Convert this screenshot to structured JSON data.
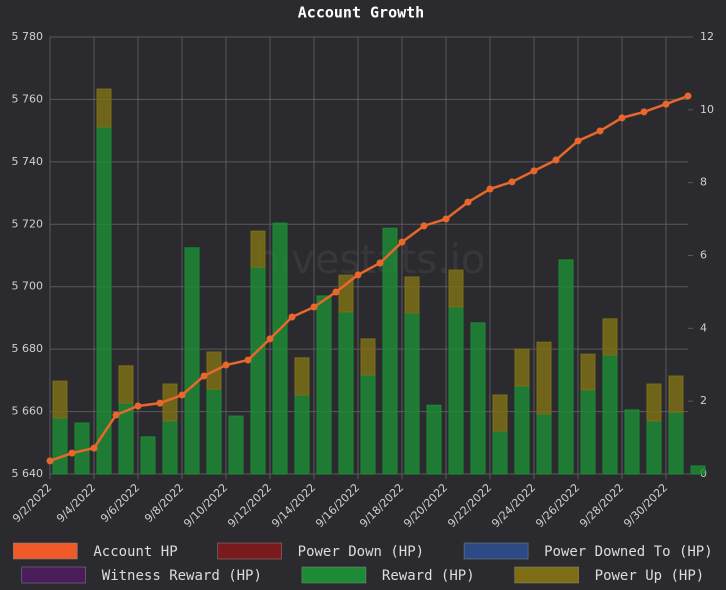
{
  "chart_data": {
    "type": "bar-line",
    "title": "Account Growth",
    "watermark": "hivestats.io",
    "categories": [
      "9/2/2022",
      null,
      "9/4/2022",
      null,
      "9/6/2022",
      null,
      "9/8/2022",
      null,
      "9/10/2022",
      null,
      "9/12/2022",
      null,
      "9/14/2022",
      null,
      "9/16/2022",
      null,
      "9/18/2022",
      null,
      "9/20/2022",
      null,
      "9/22/2022",
      null,
      "9/24/2022",
      null,
      "9/26/2022",
      null,
      "9/28/2022",
      null,
      "9/30/2022",
      null
    ],
    "series": [
      {
        "name": "Account HP",
        "color": "#e8672c",
        "legend_color": "#f05a28",
        "kind": "line",
        "axis": "y",
        "values": [
          5644.2,
          5646.7,
          5648.3,
          5658.9,
          5661.8,
          5662.7,
          5665.3,
          5671.4,
          5674.9,
          5676.5,
          5683.3,
          5690.3,
          5693.5,
          5698.3,
          5703.8,
          5707.6,
          5714.3,
          5719.5,
          5721.7,
          5727.1,
          5731.3,
          5733.6,
          5737.1,
          5740.6,
          5746.7,
          5749.9,
          5754.1,
          5756.0,
          5758.5,
          5761.1
        ]
      },
      {
        "name": "Power Down (HP)",
        "color": "#7a1a1c",
        "kind": "bar",
        "axis": "y2",
        "values": [
          0,
          0,
          0,
          0,
          0,
          0,
          0,
          0,
          0,
          0,
          0,
          0,
          0,
          0,
          0,
          0,
          0,
          0,
          0,
          0,
          0,
          0,
          0,
          0,
          0,
          0,
          0,
          0,
          0,
          0
        ]
      },
      {
        "name": "Power Downed To (HP)",
        "color": "#2d4a86",
        "kind": "bar",
        "axis": "y2",
        "values": [
          0,
          0,
          0,
          0,
          0,
          0,
          0,
          0,
          0,
          0,
          0,
          0,
          0,
          0,
          0,
          0,
          0,
          0,
          0,
          0,
          0,
          0,
          0,
          0,
          0,
          0,
          0,
          0,
          0,
          0
        ]
      },
      {
        "name": "Witness Reward (HP)",
        "color": "#4a1c5c",
        "kind": "bar",
        "axis": "y2",
        "values": [
          0,
          0,
          0,
          0,
          0,
          0,
          0,
          0,
          0,
          0,
          0,
          0,
          0,
          0,
          0,
          0,
          0,
          0,
          0,
          0,
          0,
          0,
          0,
          0,
          0,
          0,
          0,
          0,
          0,
          0
        ]
      },
      {
        "name": "Reward (HP)",
        "color": "#1d8a35",
        "kind": "bar",
        "axis": "y2",
        "values": [
          1.54,
          1.4,
          9.53,
          1.95,
          1.02,
          1.46,
          6.21,
          2.33,
          1.59,
          5.68,
          6.89,
          2.17,
          4.89,
          4.45,
          2.72,
          6.75,
          4.42,
          1.89,
          4.59,
          4.15,
          1.18,
          2.42,
          1.65,
          5.88,
          2.31,
          3.27,
          1.76,
          1.46,
          1.7,
          0.22
        ]
      },
      {
        "name": "Power Up (HP)",
        "color": "#7d6e16",
        "kind": "bar",
        "axis": "y2",
        "values": [
          1.01,
          0,
          1.04,
          1.02,
          0,
          1.01,
          0,
          1.02,
          0,
          0.99,
          0,
          1.02,
          0,
          1.01,
          0.99,
          0,
          0.99,
          0,
          1.01,
          0,
          0.99,
          1.01,
          1.97,
          0,
          0.98,
          0.99,
          0,
          1.01,
          0.99,
          0
        ]
      }
    ],
    "ylim": [
      5640,
      5780
    ],
    "yticks": [
      {
        "value": 5640,
        "label": "5 640"
      },
      {
        "value": 5660,
        "label": "5 660"
      },
      {
        "value": 5680,
        "label": "5 680"
      },
      {
        "value": 5700,
        "label": "5 700"
      },
      {
        "value": 5720,
        "label": "5 720"
      },
      {
        "value": 5740,
        "label": "5 740"
      },
      {
        "value": 5760,
        "label": "5 760"
      },
      {
        "value": 5780,
        "label": "5 780"
      }
    ],
    "y2lim": [
      0,
      12
    ],
    "y2ticks": [
      0,
      2,
      4,
      6,
      8,
      10,
      12
    ],
    "grid": true,
    "legend": "bottom"
  }
}
